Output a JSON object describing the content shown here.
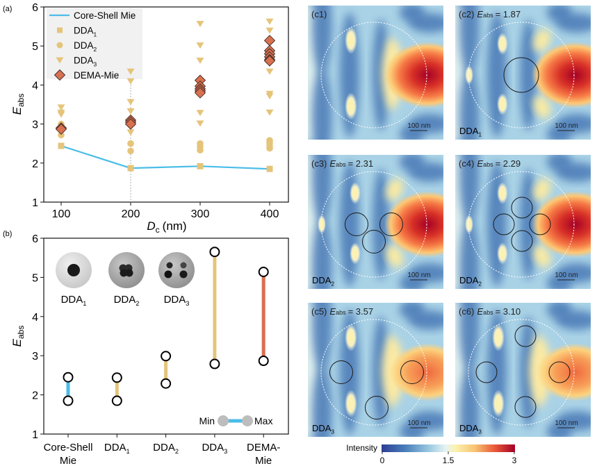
{
  "chart_data": [
    {
      "id": "a",
      "panel_label": "(a)",
      "type": "scatter",
      "xlabel": "D",
      "xlabel_sub": "c",
      "xlabel_unit": "(nm)",
      "ylabel": "E",
      "ylabel_sub": "abs",
      "xlim": [
        75,
        425
      ],
      "ylim": [
        1,
        6
      ],
      "xticks": [
        100,
        200,
        300,
        400
      ],
      "yticks": [
        1,
        2,
        3,
        4,
        5,
        6
      ],
      "reference_line_x": 200,
      "legend_position": "top-left",
      "series": [
        {
          "name": "Core-Shell Mie",
          "kind": "line",
          "color": "#4bbde8",
          "x": [
            100,
            200,
            300,
            400
          ],
          "y": [
            2.44,
            1.87,
            1.92,
            1.85
          ]
        },
        {
          "name": "DDA",
          "sub": "1",
          "kind": "square",
          "color": "#e5c47a",
          "x": [
            100,
            200,
            300,
            400
          ],
          "y": [
            2.44,
            1.87,
            1.92,
            1.85
          ]
        },
        {
          "name": "DDA",
          "sub": "2",
          "kind": "circle",
          "color": "#e5c47a",
          "x": [
            100,
            100,
            100,
            200,
            200,
            300,
            300,
            300,
            400,
            400,
            400,
            400
          ],
          "y": [
            2.72,
            2.9,
            3.0,
            2.31,
            2.5,
            2.33,
            2.42,
            2.5,
            2.38,
            2.45,
            2.52,
            2.58
          ]
        },
        {
          "name": "DDA",
          "sub": "3",
          "kind": "triangle-down",
          "color": "#e5c47a",
          "x": [
            100,
            100,
            100,
            200,
            200,
            200,
            200,
            200,
            200,
            300,
            300,
            300,
            300,
            300,
            300,
            400,
            400,
            400,
            400,
            400,
            400,
            400
          ],
          "y": [
            3.43,
            3.3,
            3.25,
            4.35,
            4.1,
            3.57,
            3.33,
            2.95,
            2.79,
            5.57,
            5.02,
            4.63,
            3.29,
            3.02,
            3.75,
            5.63,
            5.4,
            4.35,
            3.78,
            3.72,
            3.3,
            4.65
          ]
        },
        {
          "name": "DEMA-Mie",
          "kind": "diamond",
          "color": "#d9704f",
          "x": [
            100,
            100,
            200,
            200,
            200,
            300,
            300,
            300,
            300,
            300,
            400,
            400,
            400,
            400,
            400,
            400
          ],
          "y": [
            2.9,
            2.87,
            3.1,
            3.05,
            3.0,
            4.12,
            3.97,
            3.9,
            3.85,
            3.8,
            5.14,
            4.88,
            4.8,
            4.72,
            4.65,
            4.62
          ]
        }
      ]
    },
    {
      "id": "b",
      "panel_label": "(b)",
      "type": "range-bar",
      "ylabel": "E",
      "ylabel_sub": "abs",
      "ylim": [
        1,
        6
      ],
      "yticks": [
        1,
        2,
        3,
        4,
        5,
        6
      ],
      "categories": [
        {
          "label": "Core-Shell",
          "label2": "Mie",
          "sub": ""
        },
        {
          "label": "DDA",
          "label2": "",
          "sub": "1"
        },
        {
          "label": "DDA",
          "label2": "",
          "sub": "2"
        },
        {
          "label": "DDA",
          "label2": "",
          "sub": "3"
        },
        {
          "label": "DEMA-",
          "label2": "Mie",
          "sub": ""
        }
      ],
      "min": [
        1.85,
        1.85,
        2.29,
        2.79,
        2.87
      ],
      "max": [
        2.45,
        2.44,
        2.99,
        5.65,
        5.14
      ],
      "colors": [
        "#4bbde8",
        "#e5c47a",
        "#e5c47a",
        "#e5c47a",
        "#d9704f"
      ],
      "legend": {
        "min_label": "Min",
        "max_label": "Max",
        "position": "bottom-right"
      },
      "insets": [
        {
          "label": "DDA",
          "sub": "1",
          "cores": 1
        },
        {
          "label": "DDA",
          "sub": "2",
          "cores": 3
        },
        {
          "label": "DDA",
          "sub": "3",
          "cores": 4
        }
      ]
    },
    {
      "id": "c",
      "type": "heatmap",
      "colorbar": {
        "label": "Intensity",
        "ticks": [
          "0",
          "1.5",
          "3"
        ],
        "range": [
          0,
          3
        ]
      },
      "scale_bar": "100 nm",
      "panels": [
        {
          "tag": "(c1)",
          "eabs_prefix": "",
          "eabs_value": "",
          "method": "",
          "method_sub": "",
          "cores": 0,
          "variant": "shell"
        },
        {
          "tag": "(c2)",
          "eabs_prefix": "E",
          "eabs_value": "= 1.87",
          "method": "DDA",
          "method_sub": "1",
          "cores": 1,
          "variant": "core"
        },
        {
          "tag": "(c3)",
          "eabs_prefix": "E",
          "eabs_value": "= 2.31",
          "method": "DDA",
          "method_sub": "2",
          "cores": 3,
          "variant": "core"
        },
        {
          "tag": "(c4)",
          "eabs_prefix": "E",
          "eabs_value": "= 2.29",
          "method": "DDA",
          "method_sub": "2",
          "cores": 4,
          "variant": "core"
        },
        {
          "tag": "(c5)",
          "eabs_prefix": "E",
          "eabs_value": "= 3.57",
          "method": "DDA",
          "method_sub": "3",
          "cores": 3,
          "variant": "shell"
        },
        {
          "tag": "(c6)",
          "eabs_prefix": "E",
          "eabs_value": "= 3.10",
          "method": "DDA",
          "method_sub": "3",
          "cores": 4,
          "variant": "shell"
        }
      ],
      "eabs_sub": "abs"
    }
  ]
}
